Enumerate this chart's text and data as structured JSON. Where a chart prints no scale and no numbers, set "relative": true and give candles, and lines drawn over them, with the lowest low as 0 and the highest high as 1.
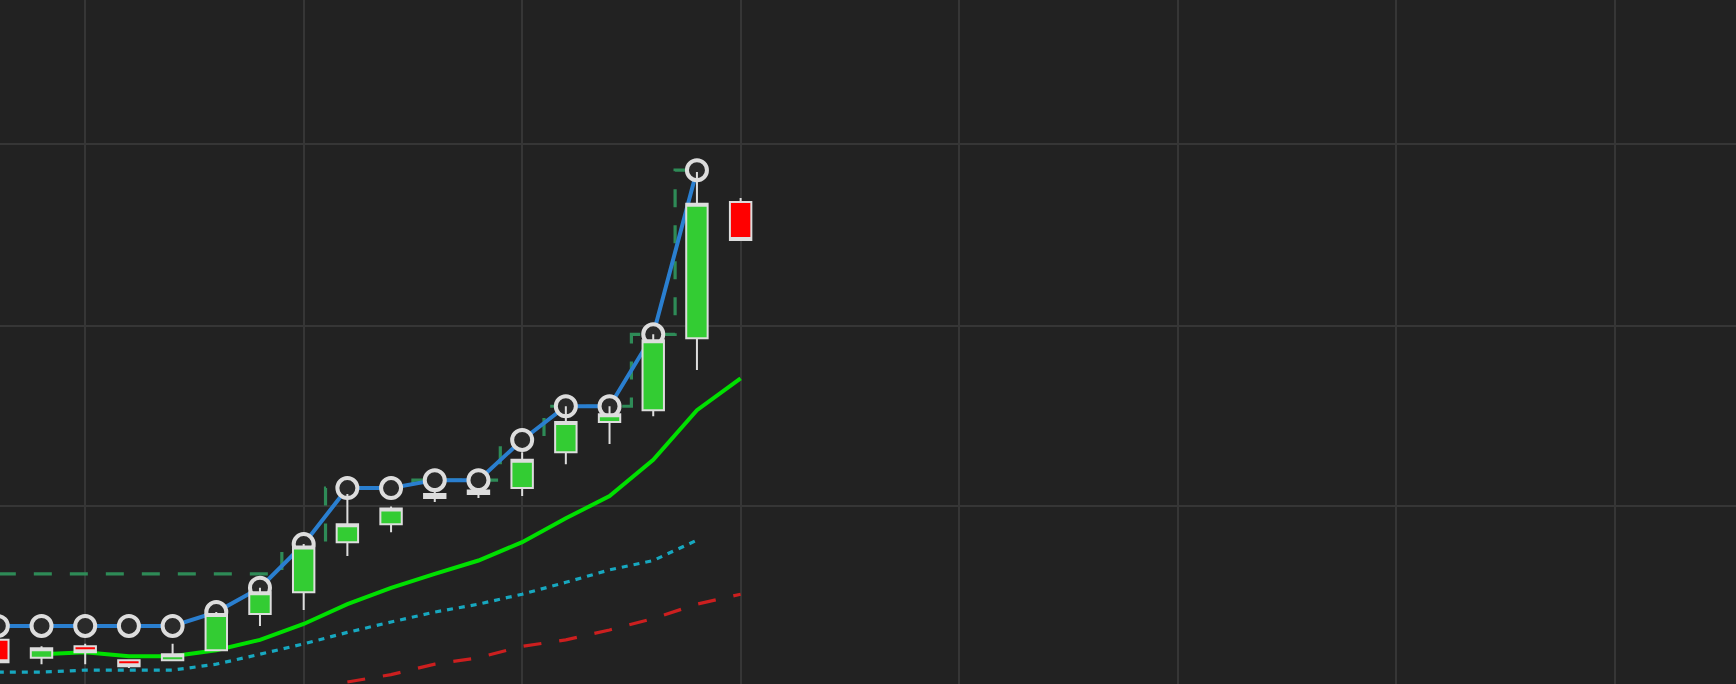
{
  "chart_data": {
    "type": "candlestick",
    "relative": true,
    "grid": true,
    "categories": [
      null,
      null,
      null,
      null,
      null,
      null,
      null,
      null,
      null,
      null,
      null,
      null,
      null,
      null,
      null,
      null,
      null,
      null
    ],
    "ohlc": [
      [
        0.057,
        0.064,
        0.004,
        0.012
      ],
      [
        0.021,
        0.044,
        0.008,
        0.04
      ],
      [
        0.044,
        0.049,
        0.008,
        0.032
      ],
      [
        0.016,
        0.016,
        0.0,
        0.004
      ],
      [
        0.016,
        0.049,
        0.016,
        0.028
      ],
      [
        0.036,
        0.113,
        0.036,
        0.109
      ],
      [
        0.109,
        0.162,
        0.085,
        0.153
      ],
      [
        0.153,
        0.25,
        0.117,
        0.245
      ],
      [
        0.254,
        0.351,
        0.226,
        0.29
      ],
      [
        0.29,
        0.326,
        0.274,
        0.322
      ],
      [
        0.343,
        0.363,
        0.335,
        0.351
      ],
      [
        0.351,
        0.363,
        0.343,
        0.358
      ],
      [
        0.363,
        0.435,
        0.347,
        0.42
      ],
      [
        0.435,
        0.528,
        0.411,
        0.496
      ],
      [
        0.496,
        0.528,
        0.452,
        0.512
      ],
      [
        0.52,
        0.673,
        0.508,
        0.661
      ],
      [
        0.665,
        1.0,
        0.601,
        0.936
      ],
      [
        0.94,
        0.948,
        0.863,
        0.863
      ]
    ],
    "series": [
      {
        "type": "step",
        "color": "#2e8b57",
        "line_style": "dashed",
        "values": [
          0.19,
          0.19,
          0.19,
          0.19,
          0.19,
          0.19,
          0.19,
          0.25,
          0.363,
          0.363,
          0.379,
          0.379,
          0.46,
          0.528,
          0.528,
          0.673,
          1.004,
          null
        ]
      },
      {
        "type": "line",
        "color": "#00e000",
        "values": [
          null,
          0.028,
          0.032,
          0.024,
          0.024,
          0.036,
          0.057,
          0.089,
          0.129,
          0.162,
          0.19,
          0.217,
          0.254,
          0.302,
          0.347,
          0.42,
          0.52,
          0.584
        ]
      },
      {
        "type": "line",
        "color": "#17a8c0",
        "line_style": "dotted",
        "values": [
          -0.008,
          -0.008,
          -0.004,
          -0.004,
          -0.004,
          0.008,
          0.028,
          0.049,
          0.072,
          0.093,
          0.113,
          0.129,
          0.149,
          0.173,
          0.198,
          0.217,
          0.258,
          null
        ]
      },
      {
        "type": "line",
        "color": "#cc1f1f",
        "line_style": "dashed",
        "values": [
          null,
          null,
          null,
          null,
          null,
          null,
          null,
          null,
          -0.028,
          -0.013,
          0.008,
          0.021,
          0.044,
          0.057,
          0.077,
          0.1,
          0.129,
          0.149
        ]
      },
      {
        "type": "line",
        "color": "#2a7fd0",
        "marker": "circle",
        "values": [
          0.085,
          0.085,
          0.085,
          0.085,
          0.085,
          0.113,
          0.162,
          0.25,
          0.363,
          0.363,
          0.379,
          0.379,
          0.46,
          0.528,
          0.528,
          0.673,
          1.004,
          null
        ]
      }
    ]
  }
}
